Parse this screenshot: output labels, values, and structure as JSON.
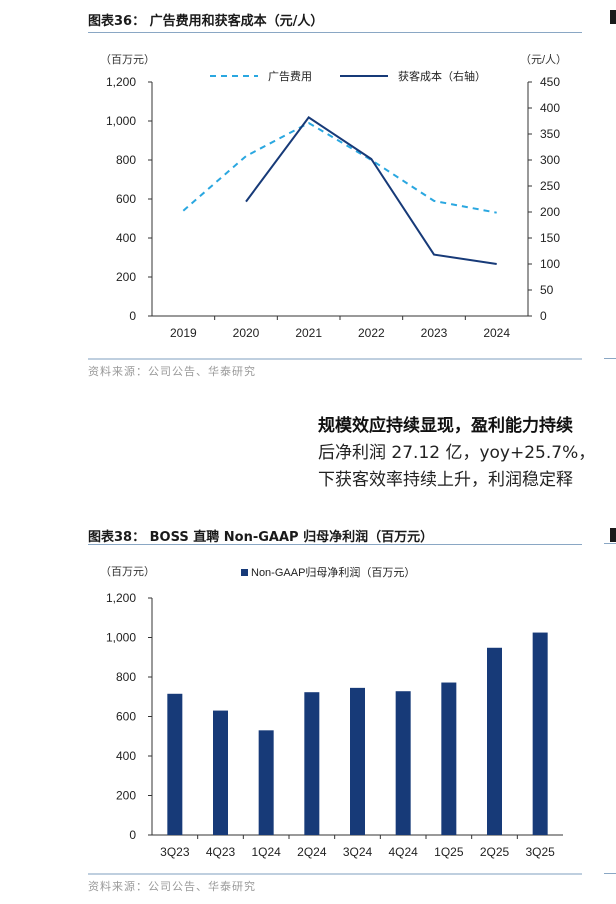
{
  "figure36": {
    "title": "图表36：  广告费用和获客成本（元/人）",
    "left_unit": "（百万元）",
    "right_unit": "（元/人）",
    "source": "资料来源：公司公告、华泰研究"
  },
  "paragraph": {
    "line1": "规模效应持续显现，盈利能力持续",
    "line2": "后净利润 27.12 亿，yoy+25.7%，",
    "line3": "下获客效率持续上升，利润稳定释"
  },
  "figure38": {
    "title": "图表38：  BOSS 直聘 Non-GAAP 归母净利润（百万元）",
    "unit": "（百万元）",
    "source": "资料来源：公司公告、华泰研究"
  },
  "colors": {
    "navy": "#173a78",
    "dash": "#2aa7e0",
    "axis": "#333333"
  },
  "chart_data": [
    {
      "type": "line",
      "title": "广告费用和获客成本（元/人）",
      "categories": [
        "2019",
        "2020",
        "2021",
        "2022",
        "2023",
        "2024"
      ],
      "series": [
        {
          "name": "广告费用",
          "axis": "left",
          "style": "dashed",
          "values": [
            540,
            820,
            990,
            800,
            590,
            530
          ]
        },
        {
          "name": "获客成本（右轴）",
          "axis": "right",
          "style": "solid",
          "values": [
            null,
            220,
            382,
            302,
            118,
            100
          ]
        }
      ],
      "ylim_left": [
        0,
        1200
      ],
      "yticks_left": [
        "0",
        "200",
        "400",
        "600",
        "800",
        "1,000",
        "1,200"
      ],
      "ylim_right": [
        0,
        450
      ],
      "yticks_right": [
        "0",
        "50",
        "100",
        "150",
        "200",
        "250",
        "300",
        "350",
        "400",
        "450"
      ],
      "legend_position": "top"
    },
    {
      "type": "bar",
      "title": "BOSS 直聘 Non-GAAP 归母净利润（百万元）",
      "categories": [
        "3Q23",
        "4Q23",
        "1Q24",
        "2Q24",
        "3Q24",
        "4Q24",
        "1Q25",
        "2Q25",
        "3Q25"
      ],
      "series": [
        {
          "name": "Non-GAAP归母净利润（百万元）",
          "values": [
            715,
            630,
            530,
            723,
            745,
            728,
            772,
            948,
            1025
          ]
        }
      ],
      "ylim": [
        0,
        1200
      ],
      "yticks": [
        "0",
        "200",
        "400",
        "600",
        "800",
        "1,000",
        "1,200"
      ],
      "legend_position": "top"
    }
  ]
}
